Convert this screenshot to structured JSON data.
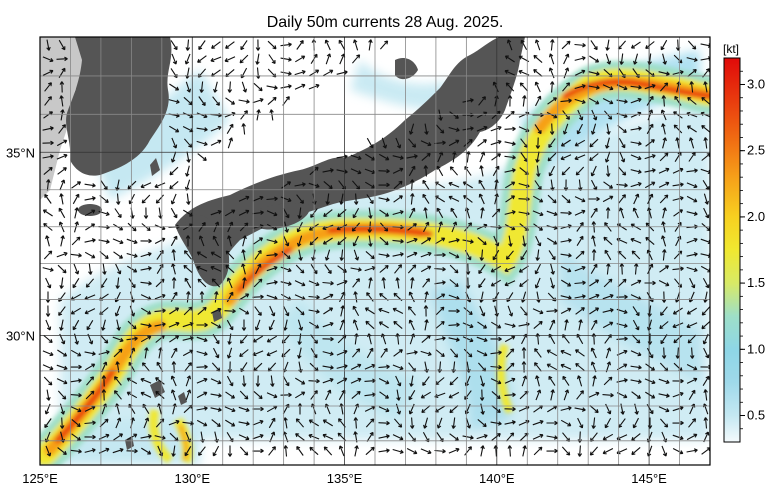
{
  "title": "Daily 50m currents 28 Aug. 2025.",
  "map": {
    "projection": "mercator",
    "lon_range_deg_e": [
      125,
      147
    ],
    "lat_range_deg_n": [
      26.3,
      38.0
    ],
    "grid": true,
    "lon_ticks": [
      "125°E",
      "130°E",
      "135°E",
      "140°E",
      "145°E"
    ],
    "lat_ticks": [
      "35°N",
      "30°N"
    ],
    "land_color": "#555555",
    "land_shadow_color": "#c8c8c8",
    "arrow_color": "#111111",
    "features": [
      "Kuroshio current along the south coast of Japan",
      "Kuroshio Extension east of Japan near 36°N",
      "Strong current east of the Ryukyu Islands"
    ]
  },
  "colorbar": {
    "unit_label": "[kt]",
    "range": [
      0.3,
      3.2
    ],
    "tick_labels": [
      "3.0",
      "2.5",
      "2.0",
      "1.5",
      "1.0",
      "0.5"
    ],
    "tick_values": [
      3.0,
      2.5,
      2.0,
      1.5,
      1.0,
      0.5
    ],
    "stops": [
      {
        "v": 0.3,
        "c": "#f4fafc"
      },
      {
        "v": 0.5,
        "c": "#c4e8f2"
      },
      {
        "v": 0.75,
        "c": "#9fd9ea"
      },
      {
        "v": 1.0,
        "c": "#8ed6e6"
      },
      {
        "v": 1.25,
        "c": "#9edfc8"
      },
      {
        "v": 1.5,
        "c": "#d8ea66"
      },
      {
        "v": 1.75,
        "c": "#f0e830"
      },
      {
        "v": 2.0,
        "c": "#f7d020"
      },
      {
        "v": 2.3,
        "c": "#f6a019"
      },
      {
        "v": 2.6,
        "c": "#f06a12"
      },
      {
        "v": 2.9,
        "c": "#e8380e"
      },
      {
        "v": 3.2,
        "c": "#e00a0a"
      }
    ]
  }
}
